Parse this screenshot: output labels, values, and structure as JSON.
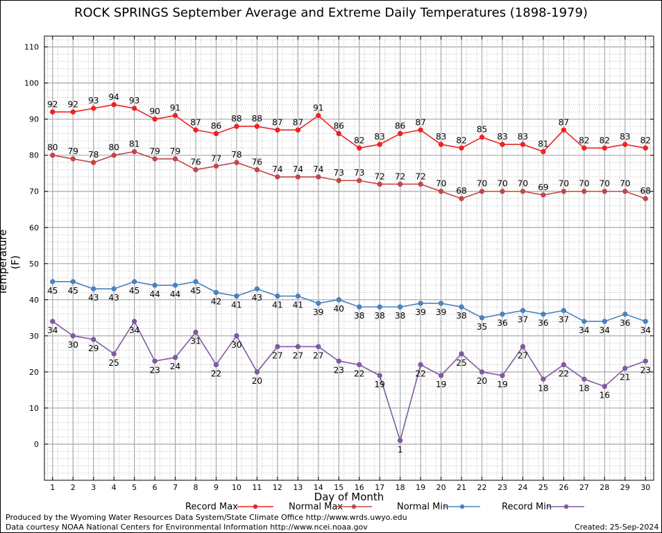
{
  "chart_data": {
    "type": "line",
    "title": "ROCK SPRINGS September Average and Extreme Daily Temperatures (1898-1979)",
    "xlabel": "Day of Month",
    "ylabel": "Temperature (F)",
    "x": [
      1,
      2,
      3,
      4,
      5,
      6,
      7,
      8,
      9,
      10,
      11,
      12,
      13,
      14,
      15,
      16,
      17,
      18,
      19,
      20,
      21,
      22,
      23,
      24,
      25,
      26,
      27,
      28,
      29,
      30
    ],
    "xlim": [
      0.6,
      30.4
    ],
    "ylim": [
      -10,
      113
    ],
    "yticks": [
      0,
      10,
      20,
      30,
      40,
      50,
      60,
      70,
      80,
      90,
      100,
      110
    ],
    "grid": true,
    "legend_position": "bottom",
    "series": [
      {
        "name": "Record Max",
        "color": "#ee2222",
        "values": [
          92,
          92,
          93,
          94,
          93,
          90,
          91,
          87,
          86,
          88,
          88,
          87,
          87,
          91,
          86,
          82,
          83,
          86,
          87,
          83,
          82,
          85,
          83,
          83,
          81,
          87,
          82,
          82,
          83,
          82
        ]
      },
      {
        "name": "Normal Max",
        "color": "#c04848",
        "values": [
          80,
          79,
          78,
          80,
          81,
          79,
          79,
          76,
          77,
          78,
          76,
          74,
          74,
          74,
          73,
          73,
          72,
          72,
          72,
          70,
          68,
          70,
          70,
          70,
          69,
          70,
          70,
          70,
          70,
          68
        ]
      },
      {
        "name": "Normal Min",
        "color": "#4a82be",
        "values": [
          45,
          45,
          43,
          43,
          45,
          44,
          44,
          45,
          42,
          41,
          43,
          41,
          41,
          39,
          40,
          38,
          38,
          38,
          39,
          39,
          38,
          35,
          36,
          37,
          36,
          37,
          34,
          34,
          36,
          34
        ]
      },
      {
        "name": "Record Min",
        "color": "#7e5aa0",
        "values": [
          34,
          30,
          29,
          25,
          34,
          23,
          24,
          31,
          22,
          30,
          20,
          27,
          27,
          27,
          23,
          22,
          19,
          1,
          22,
          19,
          25,
          20,
          19,
          27,
          18,
          22,
          18,
          16,
          21,
          23
        ]
      }
    ]
  },
  "footer": {
    "produced_by": "Produced by the Wyoming Water Resources Data System/State Climate Office http://www.wrds.uwyo.edu",
    "courtesy": "Data courtesy NOAA National Centers for Environmental Information http://www.ncei.noaa.gov",
    "created": "Created:  25-Sep-2024"
  }
}
